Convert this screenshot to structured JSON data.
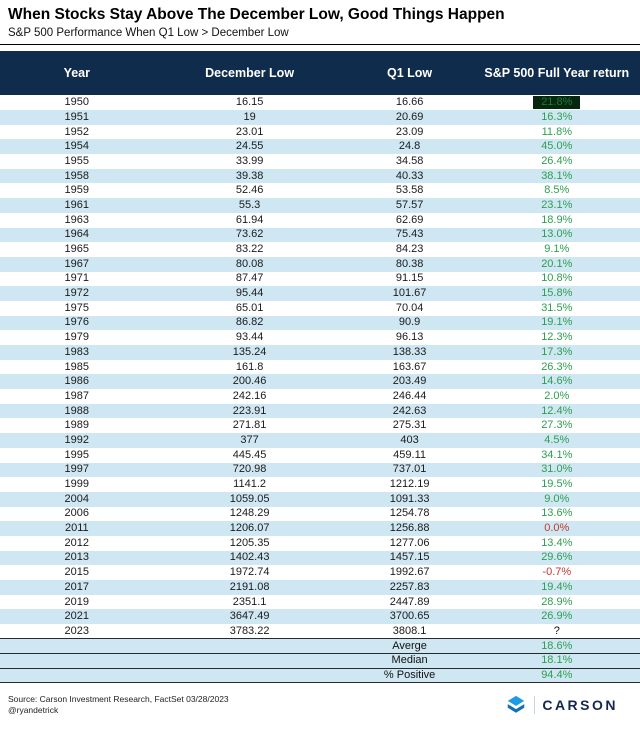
{
  "title": "When Stocks Stay Above The December Low, Good Things Happen",
  "subtitle": "S&P 500 Performance When Q1 Low > December Low",
  "chart_data": {
    "type": "table",
    "columns": [
      "Year",
      "December Low",
      "Q1 Low",
      "S&P 500 Full Year return"
    ],
    "rows": [
      {
        "year": "1950",
        "december_low": "16.15",
        "q1_low": "16.66",
        "full_year_return": "21.8%",
        "style": "highlight"
      },
      {
        "year": "1951",
        "december_low": "19",
        "q1_low": "20.69",
        "full_year_return": "16.3%",
        "style": "positive"
      },
      {
        "year": "1952",
        "december_low": "23.01",
        "q1_low": "23.09",
        "full_year_return": "11.8%",
        "style": "positive"
      },
      {
        "year": "1954",
        "december_low": "24.55",
        "q1_low": "24.8",
        "full_year_return": "45.0%",
        "style": "positive"
      },
      {
        "year": "1955",
        "december_low": "33.99",
        "q1_low": "34.58",
        "full_year_return": "26.4%",
        "style": "positive"
      },
      {
        "year": "1958",
        "december_low": "39.38",
        "q1_low": "40.33",
        "full_year_return": "38.1%",
        "style": "positive"
      },
      {
        "year": "1959",
        "december_low": "52.46",
        "q1_low": "53.58",
        "full_year_return": "8.5%",
        "style": "positive"
      },
      {
        "year": "1961",
        "december_low": "55.3",
        "q1_low": "57.57",
        "full_year_return": "23.1%",
        "style": "positive"
      },
      {
        "year": "1963",
        "december_low": "61.94",
        "q1_low": "62.69",
        "full_year_return": "18.9%",
        "style": "positive"
      },
      {
        "year": "1964",
        "december_low": "73.62",
        "q1_low": "75.43",
        "full_year_return": "13.0%",
        "style": "positive"
      },
      {
        "year": "1965",
        "december_low": "83.22",
        "q1_low": "84.23",
        "full_year_return": "9.1%",
        "style": "positive"
      },
      {
        "year": "1967",
        "december_low": "80.08",
        "q1_low": "80.38",
        "full_year_return": "20.1%",
        "style": "positive"
      },
      {
        "year": "1971",
        "december_low": "87.47",
        "q1_low": "91.15",
        "full_year_return": "10.8%",
        "style": "positive"
      },
      {
        "year": "1972",
        "december_low": "95.44",
        "q1_low": "101.67",
        "full_year_return": "15.8%",
        "style": "positive"
      },
      {
        "year": "1975",
        "december_low": "65.01",
        "q1_low": "70.04",
        "full_year_return": "31.5%",
        "style": "positive"
      },
      {
        "year": "1976",
        "december_low": "86.82",
        "q1_low": "90.9",
        "full_year_return": "19.1%",
        "style": "positive"
      },
      {
        "year": "1979",
        "december_low": "93.44",
        "q1_low": "96.13",
        "full_year_return": "12.3%",
        "style": "positive"
      },
      {
        "year": "1983",
        "december_low": "135.24",
        "q1_low": "138.33",
        "full_year_return": "17.3%",
        "style": "positive"
      },
      {
        "year": "1985",
        "december_low": "161.8",
        "q1_low": "163.67",
        "full_year_return": "26.3%",
        "style": "positive"
      },
      {
        "year": "1986",
        "december_low": "200.46",
        "q1_low": "203.49",
        "full_year_return": "14.6%",
        "style": "positive"
      },
      {
        "year": "1987",
        "december_low": "242.16",
        "q1_low": "246.44",
        "full_year_return": "2.0%",
        "style": "positive"
      },
      {
        "year": "1988",
        "december_low": "223.91",
        "q1_low": "242.63",
        "full_year_return": "12.4%",
        "style": "positive"
      },
      {
        "year": "1989",
        "december_low": "271.81",
        "q1_low": "275.31",
        "full_year_return": "27.3%",
        "style": "positive"
      },
      {
        "year": "1992",
        "december_low": "377",
        "q1_low": "403",
        "full_year_return": "4.5%",
        "style": "positive"
      },
      {
        "year": "1995",
        "december_low": "445.45",
        "q1_low": "459.11",
        "full_year_return": "34.1%",
        "style": "positive"
      },
      {
        "year": "1997",
        "december_low": "720.98",
        "q1_low": "737.01",
        "full_year_return": "31.0%",
        "style": "positive"
      },
      {
        "year": "1999",
        "december_low": "1141.2",
        "q1_low": "1212.19",
        "full_year_return": "19.5%",
        "style": "positive"
      },
      {
        "year": "2004",
        "december_low": "1059.05",
        "q1_low": "1091.33",
        "full_year_return": "9.0%",
        "style": "positive"
      },
      {
        "year": "2006",
        "december_low": "1248.29",
        "q1_low": "1254.78",
        "full_year_return": "13.6%",
        "style": "positive"
      },
      {
        "year": "2011",
        "december_low": "1206.07",
        "q1_low": "1256.88",
        "full_year_return": "0.0%",
        "style": "negative"
      },
      {
        "year": "2012",
        "december_low": "1205.35",
        "q1_low": "1277.06",
        "full_year_return": "13.4%",
        "style": "positive"
      },
      {
        "year": "2013",
        "december_low": "1402.43",
        "q1_low": "1457.15",
        "full_year_return": "29.6%",
        "style": "positive"
      },
      {
        "year": "2015",
        "december_low": "1972.74",
        "q1_low": "1992.67",
        "full_year_return": "-0.7%",
        "style": "negative"
      },
      {
        "year": "2017",
        "december_low": "2191.08",
        "q1_low": "2257.83",
        "full_year_return": "19.4%",
        "style": "positive"
      },
      {
        "year": "2019",
        "december_low": "2351.1",
        "q1_low": "2447.89",
        "full_year_return": "28.9%",
        "style": "positive"
      },
      {
        "year": "2021",
        "december_low": "3647.49",
        "q1_low": "3700.65",
        "full_year_return": "26.9%",
        "style": "positive"
      },
      {
        "year": "2023",
        "december_low": "3783.22",
        "q1_low": "3808.1",
        "full_year_return": "?",
        "style": "unknown"
      }
    ],
    "summary": [
      {
        "label": "Averge",
        "value": "18.6%"
      },
      {
        "label": "Median",
        "value": "18.1%"
      },
      {
        "label": "% Positive",
        "value": "94.4%"
      }
    ]
  },
  "footer": {
    "source": "Source: Carson Investment Research, FactSet 03/28/2023",
    "handle": "@ryandetrick",
    "brand": "CARSON"
  },
  "colors": {
    "header_bg": "#102c4c",
    "row_alt_bg": "#cfe7f2",
    "positive_text": "#2e9e50",
    "negative_text": "#c0392b",
    "highlight_bg": "#07270f",
    "brand_blue": "#1d9be4",
    "brand_navy": "#14284b"
  }
}
